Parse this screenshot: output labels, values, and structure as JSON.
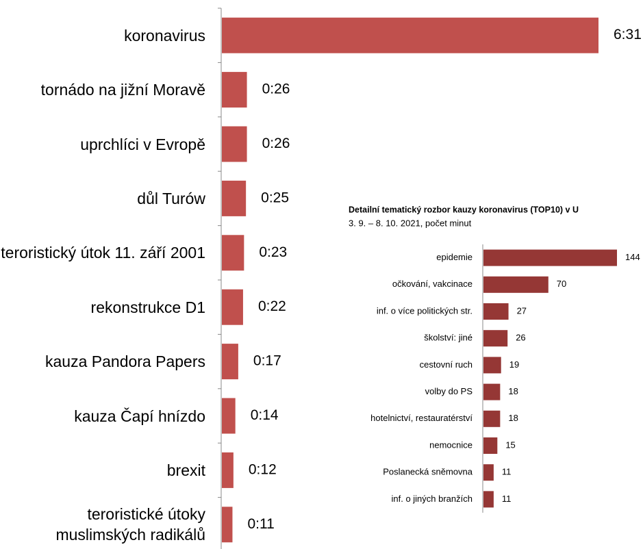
{
  "chart_data": [
    {
      "type": "bar",
      "orientation": "horizontal",
      "categories": [
        "koronavirus",
        "tornádo na jižní Moravě",
        "uprchlíci v Evropě",
        "důl Turów",
        "teroristický útok 11. září 2001",
        "rekonstrukce D1",
        "kauza Pandora Papers",
        "kauza Čapí hnízdo",
        "brexit",
        "teroristické útoky\nmuslimských radikálů"
      ],
      "values": [
        391,
        26,
        26,
        25,
        23,
        22,
        17,
        14,
        12,
        11
      ],
      "value_labels": [
        "6:31",
        "0:26",
        "0:26",
        "0:25",
        "0:23",
        "0:22",
        "0:17",
        "0:14",
        "0:12",
        "0:11"
      ],
      "color": "#c0504d"
    },
    {
      "type": "bar",
      "orientation": "horizontal",
      "title": "Detailní tematický rozbor kauzy koronavirus (TOP10) v U",
      "subtitle": "3. 9. – 8. 10. 2021, počet minut",
      "categories": [
        "epidemie",
        "očkování, vakcinace",
        "inf. o více politických str.",
        "školství: jiné",
        "cestovní ruch",
        "volby do PS",
        "hotelnictví, restauratérství",
        "nemocnice",
        "Poslanecká sněmovna",
        "inf. o jiných branžích"
      ],
      "values": [
        144,
        70,
        27,
        26,
        19,
        18,
        18,
        15,
        11,
        11
      ],
      "color": "#953735"
    }
  ]
}
